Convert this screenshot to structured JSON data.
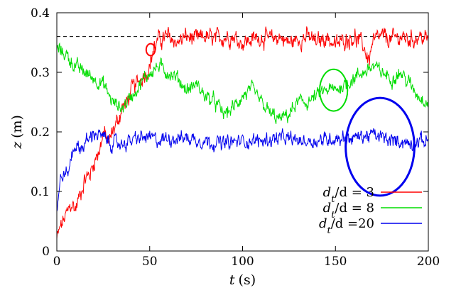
{
  "chart_data": {
    "type": "line",
    "xlabel": {
      "var": "t",
      "unit": "(s)"
    },
    "ylabel": {
      "var": "z",
      "unit": "(m)"
    },
    "xlim": [
      0,
      200
    ],
    "ylim": [
      0,
      0.4
    ],
    "xticks": [
      0,
      50,
      100,
      150,
      200
    ],
    "yticks": [
      0,
      0.1,
      0.2,
      0.3,
      0.4
    ],
    "x_tick_labels": [
      "0",
      "50",
      "100",
      "150",
      "200"
    ],
    "y_tick_labels": [
      "0",
      "0.1",
      "0.2",
      "0.3",
      "0.4"
    ],
    "grid": false,
    "legend_position": "bottom-right",
    "reference_line": {
      "y": 0.36,
      "style": "dashed",
      "color": "#000000"
    },
    "series": [
      {
        "name": "d_t/d = 3",
        "legend": {
          "base": "d",
          "sub": "t",
          "rest": "/d = 3"
        },
        "color": "#ff0000",
        "noise": 0.012,
        "x": [
          0,
          2,
          5,
          8,
          10,
          13,
          15,
          18,
          20,
          23,
          25,
          28,
          30,
          33,
          35,
          38,
          40,
          43,
          45,
          48,
          50,
          52,
          55,
          60,
          65,
          70,
          75,
          80,
          85,
          90,
          95,
          100,
          105,
          110,
          115,
          120,
          125,
          130,
          135,
          140,
          145,
          150,
          155,
          160,
          165,
          168,
          170,
          175,
          180,
          185,
          190,
          195,
          200
        ],
        "y": [
          0.02,
          0.04,
          0.06,
          0.08,
          0.07,
          0.1,
          0.12,
          0.13,
          0.15,
          0.17,
          0.2,
          0.18,
          0.2,
          0.22,
          0.24,
          0.25,
          0.27,
          0.28,
          0.29,
          0.3,
          0.31,
          0.34,
          0.355,
          0.36,
          0.35,
          0.36,
          0.355,
          0.36,
          0.355,
          0.36,
          0.36,
          0.35,
          0.355,
          0.36,
          0.355,
          0.36,
          0.35,
          0.355,
          0.36,
          0.35,
          0.36,
          0.345,
          0.355,
          0.36,
          0.345,
          0.32,
          0.35,
          0.36,
          0.355,
          0.36,
          0.355,
          0.36,
          0.355
        ]
      },
      {
        "name": "d_t/d = 8",
        "legend": {
          "base": "d",
          "sub": "t",
          "rest": "/d = 8"
        },
        "color": "#00dd00",
        "noise": 0.01,
        "x": [
          0,
          5,
          10,
          15,
          20,
          25,
          30,
          35,
          40,
          45,
          50,
          55,
          60,
          65,
          70,
          75,
          80,
          85,
          90,
          95,
          100,
          105,
          110,
          115,
          120,
          125,
          130,
          135,
          140,
          145,
          150,
          155,
          160,
          165,
          170,
          175,
          180,
          185,
          190,
          195,
          200
        ],
        "y": [
          0.34,
          0.33,
          0.31,
          0.3,
          0.29,
          0.28,
          0.25,
          0.24,
          0.26,
          0.28,
          0.3,
          0.31,
          0.3,
          0.29,
          0.27,
          0.28,
          0.26,
          0.25,
          0.23,
          0.24,
          0.26,
          0.27,
          0.25,
          0.23,
          0.22,
          0.23,
          0.25,
          0.25,
          0.26,
          0.27,
          0.27,
          0.28,
          0.29,
          0.3,
          0.31,
          0.3,
          0.29,
          0.3,
          0.28,
          0.26,
          0.25
        ]
      },
      {
        "name": "d_t/d =20",
        "legend": {
          "base": "d",
          "sub": "t",
          "rest": "/d =20"
        },
        "color": "#0000ee",
        "noise": 0.01,
        "x": [
          0,
          2,
          4,
          6,
          8,
          10,
          12,
          15,
          18,
          20,
          25,
          30,
          35,
          40,
          45,
          50,
          55,
          60,
          65,
          70,
          80,
          90,
          100,
          110,
          120,
          130,
          140,
          150,
          160,
          170,
          175,
          180,
          185,
          190,
          195,
          200
        ],
        "y": [
          0.07,
          0.12,
          0.13,
          0.13,
          0.16,
          0.18,
          0.17,
          0.18,
          0.19,
          0.2,
          0.19,
          0.18,
          0.18,
          0.185,
          0.19,
          0.19,
          0.185,
          0.19,
          0.19,
          0.19,
          0.185,
          0.18,
          0.185,
          0.185,
          0.19,
          0.185,
          0.185,
          0.19,
          0.19,
          0.195,
          0.19,
          0.185,
          0.185,
          0.18,
          0.185,
          0.185
        ]
      }
    ],
    "annotations": [
      {
        "type": "circle",
        "x": 50.5,
        "y": 0.338,
        "rx": 2.4,
        "ry": 0.01,
        "color": "#ff0000"
      },
      {
        "type": "circle",
        "x": 149,
        "y": 0.27,
        "rx": 7.5,
        "ry": 0.035,
        "color": "#00dd00"
      },
      {
        "type": "circle",
        "x": 174,
        "y": 0.175,
        "rx": 18.5,
        "ry": 0.082,
        "color": "#0000ee"
      }
    ]
  }
}
